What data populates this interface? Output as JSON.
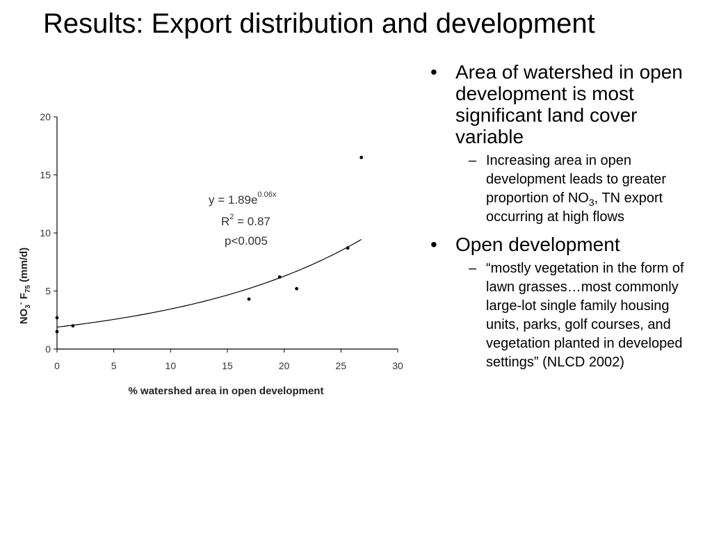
{
  "slide": {
    "title": "Results: Export distribution and development"
  },
  "bullets": {
    "b1": {
      "marker": "•",
      "text": "Area of watershed in open development is most significant land cover variable"
    },
    "b1_sub": {
      "marker": "–",
      "text_before": "Increasing area in open development leads to greater proportion of NO",
      "subscript": "3",
      "text_after": ", TN export occurring at high flows"
    },
    "b2": {
      "marker": "•",
      "text": "Open development"
    },
    "b2_sub": {
      "marker": "–",
      "text": "“mostly vegetation in the form of lawn grasses…most commonly large-lot single family housing units, parks, golf courses, and vegetation planted in developed settings” (NLCD 2002)"
    }
  },
  "chart_data": {
    "type": "scatter",
    "xlabel": "% watershed area in open development",
    "ylabel_parts": {
      "main": "NO",
      "sub1": "3",
      "sup1": "-",
      "mid": " F",
      "sub2": "75",
      "end": " (mm/d)"
    },
    "xlim": [
      0,
      30
    ],
    "ylim": [
      0,
      20
    ],
    "xticks": [
      0,
      5,
      10,
      15,
      20,
      25,
      30
    ],
    "yticks": [
      0,
      5,
      10,
      15,
      20
    ],
    "grid": false,
    "points": [
      {
        "x": 0,
        "y": 1.5
      },
      {
        "x": 0,
        "y": 2.7
      },
      {
        "x": 1.4,
        "y": 2.0
      },
      {
        "x": 16.9,
        "y": 4.3
      },
      {
        "x": 19.6,
        "y": 6.2
      },
      {
        "x": 21.1,
        "y": 5.2
      },
      {
        "x": 25.6,
        "y": 8.7
      },
      {
        "x": 26.8,
        "y": 16.5
      }
    ],
    "fit": {
      "type": "exponential",
      "a": 1.89,
      "b": 0.06,
      "x_range": [
        0,
        26.8
      ]
    },
    "annotation": {
      "equation_base": "y = 1.89e",
      "equation_exp": "0.06x",
      "r2_base": "R",
      "r2_exp": "2",
      "r2_value": " = 0.87",
      "p": "p<0.005"
    }
  }
}
